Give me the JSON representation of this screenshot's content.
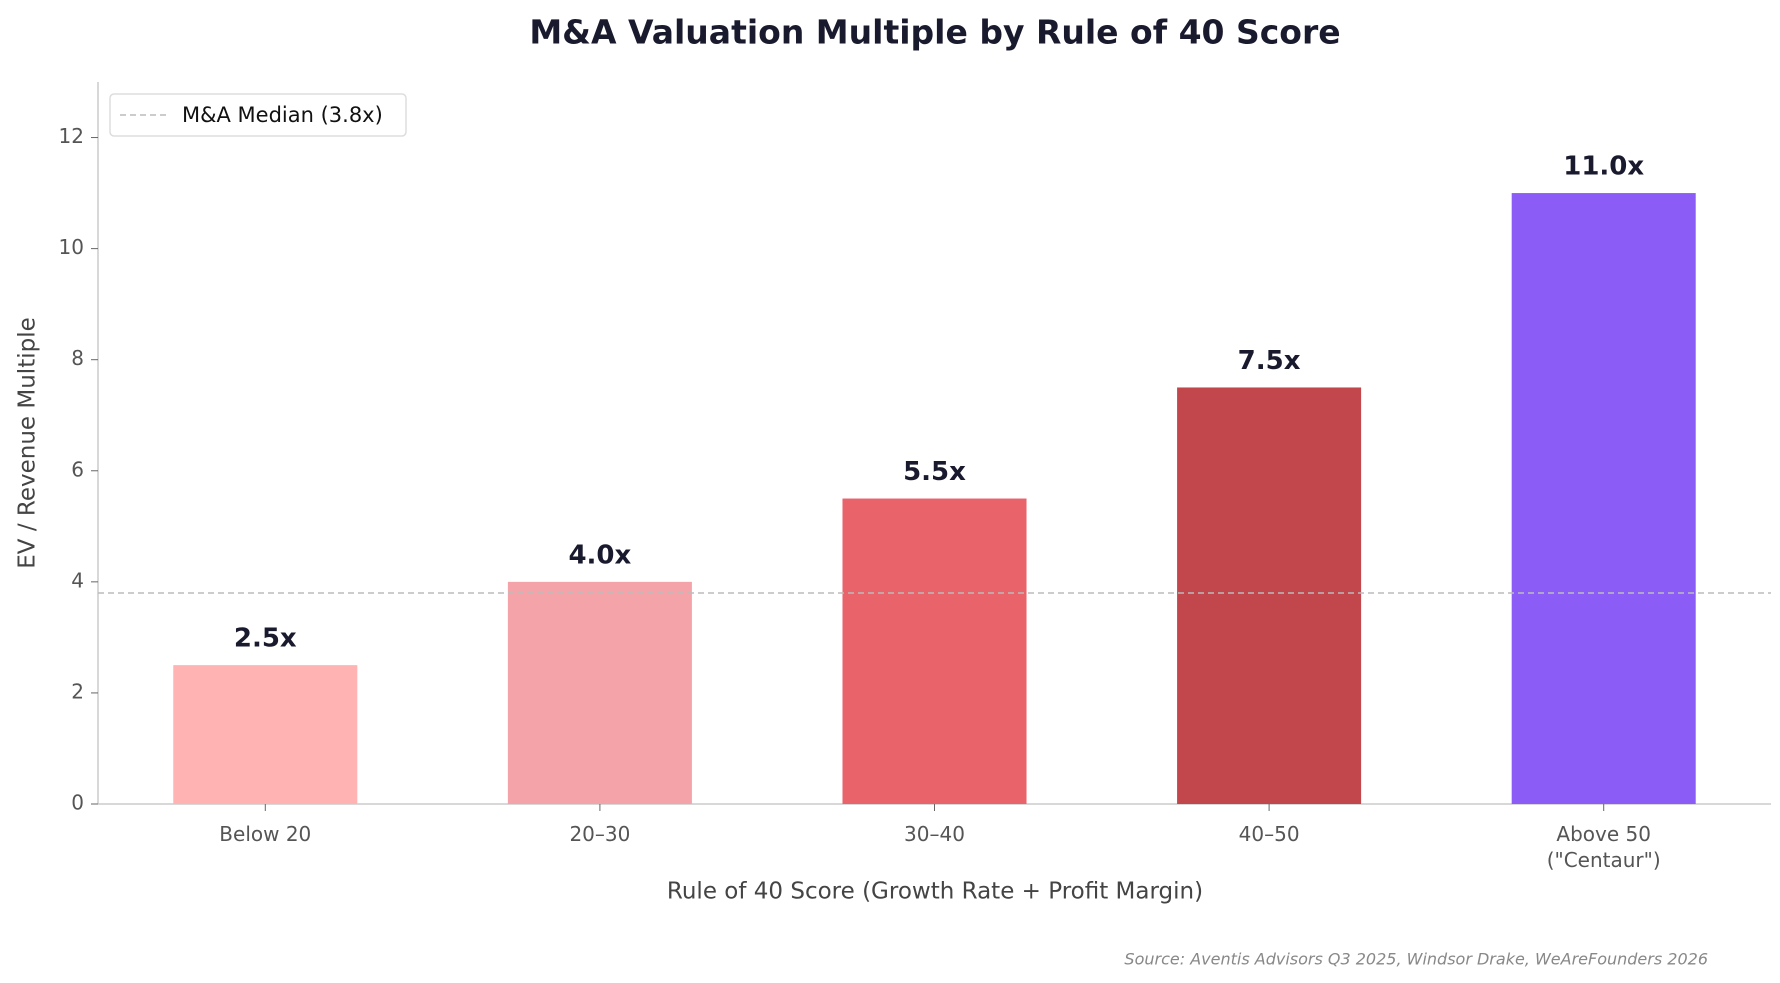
{
  "chart_data": {
    "type": "bar",
    "title": "M&A Valuation Multiple by Rule of 40 Score",
    "x_label": "Rule of 40 Score (Growth Rate + Profit Margin)",
    "y_label": "EV / Revenue Multiple",
    "source": "Source: Aventis Advisors Q3 2025, Windsor Drake, WeAreFounders 2026",
    "categories": [
      "Below 20",
      "20–30",
      "30–40",
      "40–50",
      "Above 50\n(\"Centaur\")"
    ],
    "values": [
      2.5,
      4.0,
      5.5,
      7.5,
      11.0
    ],
    "value_labels": [
      "2.5x",
      "4.0x",
      "5.5x",
      "7.5x",
      "11.0x"
    ],
    "colors": [
      "#ffb3b3",
      "#f4a4a8",
      "#e8636a",
      "#c1474c",
      "#8b5cf6"
    ],
    "reference_line": {
      "value": 3.8,
      "label": "M&A Median (3.8x)",
      "color": "#bbbbbb"
    },
    "legend": "upper left",
    "ylim": [
      0,
      13
    ],
    "yticks": [
      0,
      2,
      4,
      6,
      8,
      10,
      12
    ],
    "grid": false
  }
}
